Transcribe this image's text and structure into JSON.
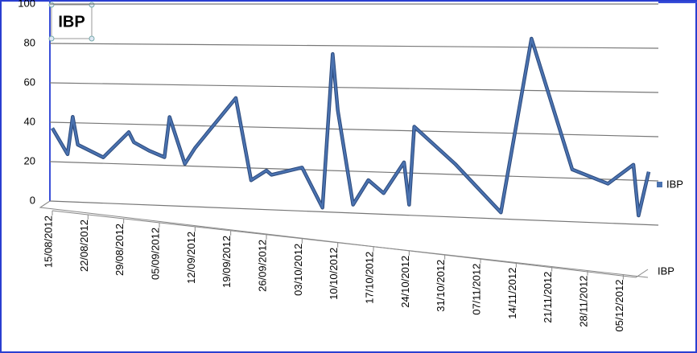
{
  "chart_data": {
    "type": "line",
    "title": "IBP",
    "z_label": "IBP",
    "x": [
      "15/08/2012",
      "18/08/2012",
      "19/08/2012",
      "20/08/2012",
      "25/08/2012",
      "30/08/2012",
      "31/08/2012",
      "03/09/2012",
      "06/09/2012",
      "07/09/2012",
      "10/09/2012",
      "12/09/2012",
      "20/09/2012",
      "23/09/2012",
      "26/09/2012",
      "27/09/2012",
      "03/10/2012",
      "07/10/2012",
      "09/10/2012",
      "10/10/2012",
      "13/10/2012",
      "16/10/2012",
      "19/10/2012",
      "23/10/2012",
      "24/10/2012",
      "25/10/2012",
      "02/11/2012",
      "11/11/2012",
      "17/11/2012",
      "25/11/2012",
      "02/12/2012",
      "07/12/2012",
      "08/12/2012",
      "10/12/2012"
    ],
    "series": [
      {
        "name": "IBP",
        "color": "#4a72b0",
        "values": [
          37,
          24,
          43,
          29,
          23,
          36,
          31,
          27,
          24,
          44,
          21,
          29,
          54,
          14,
          19,
          17,
          21,
          2,
          76,
          49,
          4,
          16,
          10,
          25,
          5,
          42,
          25,
          3,
          84,
          24,
          18,
          27,
          4,
          24
        ]
      }
    ],
    "xlim": [
      "15/08/2012",
      "10/12/2012"
    ],
    "xticks": [
      "15/08/2012",
      "22/08/2012",
      "29/08/2012",
      "05/09/2012",
      "12/09/2012",
      "19/09/2012",
      "26/09/2012",
      "03/10/2012",
      "10/10/2012",
      "17/10/2012",
      "24/10/2012",
      "31/10/2012",
      "07/11/2012",
      "14/11/2012",
      "21/11/2012",
      "28/11/2012",
      "05/12/2012"
    ],
    "ylim": [
      0,
      100
    ],
    "yticks": [
      0,
      20,
      40,
      60,
      80,
      100
    ],
    "grid": true,
    "legend": "right"
  }
}
